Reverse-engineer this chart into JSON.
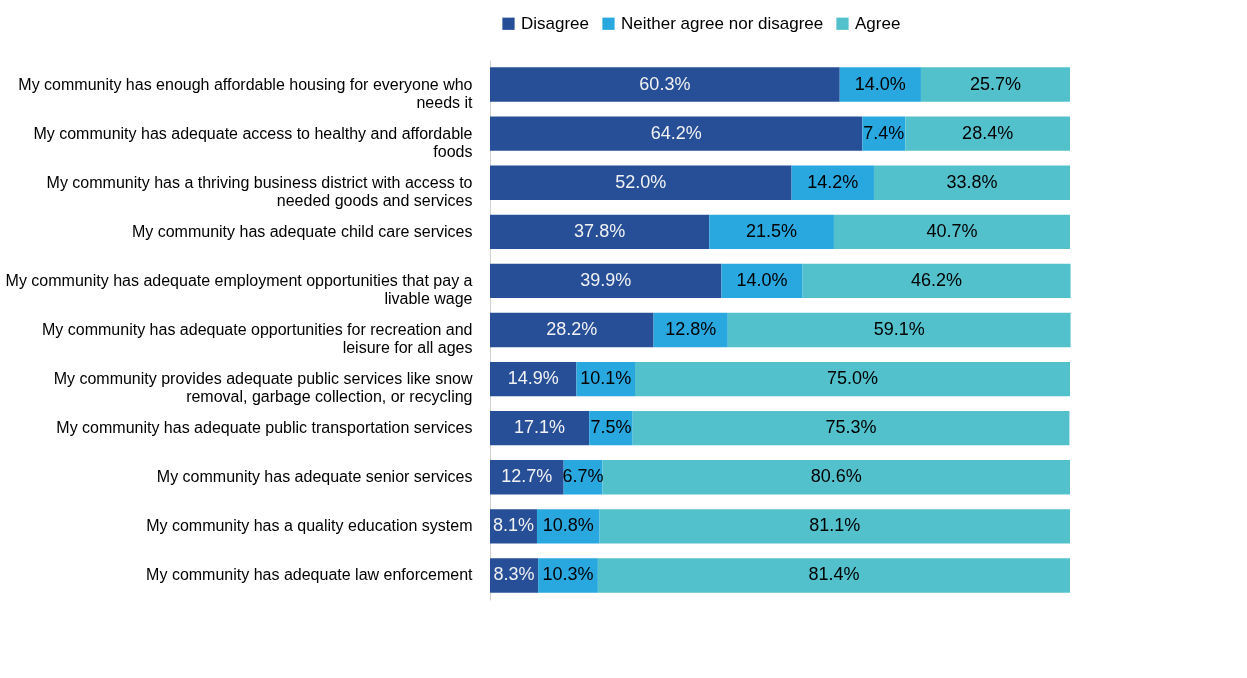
{
  "chart_data": {
    "type": "bar",
    "orientation": "horizontal",
    "stacked": true,
    "legend": "top",
    "grid": false,
    "tick_labels": "y",
    "xlim": [
      0,
      100
    ],
    "categories": [
      "My community has enough affordable housing for everyone who needs it",
      "My community has adequate access to healthy and affordable foods",
      "My community has a thriving business district with access to needed goods and services",
      "My community has adequate child care services",
      "My community has adequate employment opportunities that pay a livable wage",
      "My community has adequate opportunities for recreation and leisure for all ages",
      "My community provides adequate public services like snow removal, garbage collection, or recycling",
      "My community has adequate public transportation services",
      "My community has adequate senior services",
      "My community has a quality education system",
      "My community has adequate law enforcement"
    ],
    "series": [
      {
        "name": "Disagree",
        "color": "#264f97",
        "values": [
          60.3,
          64.2,
          52.0,
          37.8,
          39.9,
          28.2,
          14.9,
          17.1,
          12.7,
          8.1,
          8.3
        ],
        "value_labels": [
          "60.3%",
          "64.2%",
          "52.0%",
          "37.8%",
          "39.9%",
          "28.2%",
          "14.9%",
          "17.1%",
          "12.7%",
          "8.1%",
          "8.3%"
        ]
      },
      {
        "name": "Neither agree nor disagree",
        "color": "#29a8e0",
        "values": [
          14.0,
          7.4,
          14.2,
          21.5,
          14.0,
          12.8,
          10.1,
          7.5,
          6.7,
          10.8,
          10.3
        ],
        "value_labels": [
          "14.0%",
          "7.4%",
          "14.2%",
          "21.5%",
          "14.0%",
          "12.8%",
          "10.1%",
          "7.5%",
          "6.7%",
          "10.8%",
          "10.3%"
        ]
      },
      {
        "name": "Agree",
        "color": "#53c1cc",
        "values": [
          25.7,
          28.4,
          33.8,
          40.7,
          46.2,
          59.1,
          75.0,
          75.3,
          80.6,
          81.1,
          81.4
        ],
        "value_labels": [
          "25.7%",
          "28.4%",
          "33.8%",
          "40.7%",
          "46.2%",
          "59.1%",
          "75.0%",
          "75.3%",
          "80.6%",
          "81.1%",
          "81.4%"
        ]
      }
    ]
  }
}
